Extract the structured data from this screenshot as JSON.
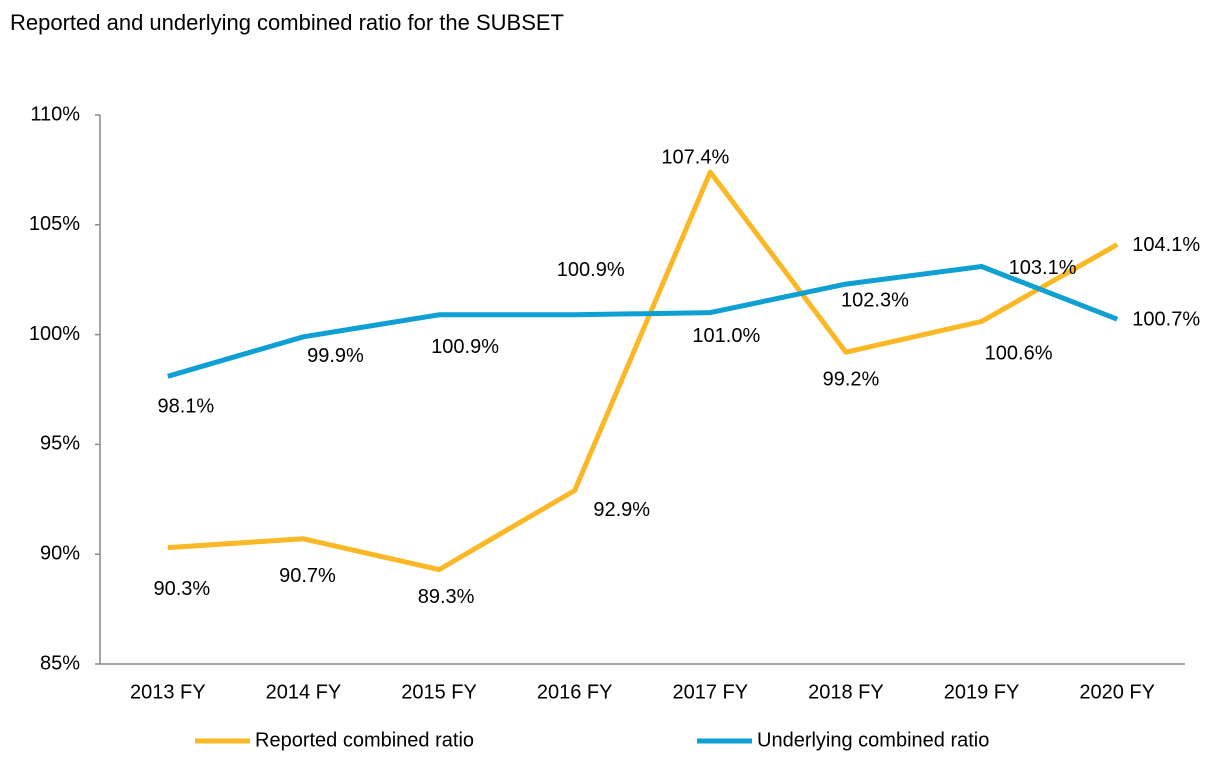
{
  "chart_data": {
    "type": "line",
    "title": "Reported and underlying combined ratio for the SUBSET",
    "categories": [
      "2013 FY",
      "2014 FY",
      "2015 FY",
      "2016 FY",
      "2017 FY",
      "2018 FY",
      "2019 FY",
      "2020 FY"
    ],
    "series": [
      {
        "name": "Reported combined ratio",
        "color": "#fbb826",
        "values": [
          90.3,
          90.7,
          89.3,
          92.9,
          107.4,
          99.2,
          100.6,
          104.1
        ],
        "value_labels": [
          "90.3%",
          "90.7%",
          "89.3%",
          "92.9%",
          "107.4%",
          "99.2%",
          "100.6%",
          "104.1%"
        ]
      },
      {
        "name": "Underlying combined ratio",
        "color": "#0e9fd3",
        "values": [
          98.1,
          99.9,
          100.9,
          100.9,
          101.0,
          102.3,
          103.1,
          100.7
        ],
        "value_labels": [
          "98.1%",
          "99.9%",
          "100.9%",
          "100.9%",
          "101.0%",
          "102.3%",
          "103.1%",
          "100.7%"
        ]
      }
    ],
    "ylim": [
      85,
      110
    ],
    "yticks": [
      {
        "value": 85,
        "label": "85%"
      },
      {
        "value": 90,
        "label": "90%"
      },
      {
        "value": 95,
        "label": "95%"
      },
      {
        "value": 100,
        "label": "100%"
      },
      {
        "value": 105,
        "label": "105%"
      },
      {
        "value": 110,
        "label": "110%"
      }
    ],
    "grid": false,
    "legend": "bottom"
  }
}
